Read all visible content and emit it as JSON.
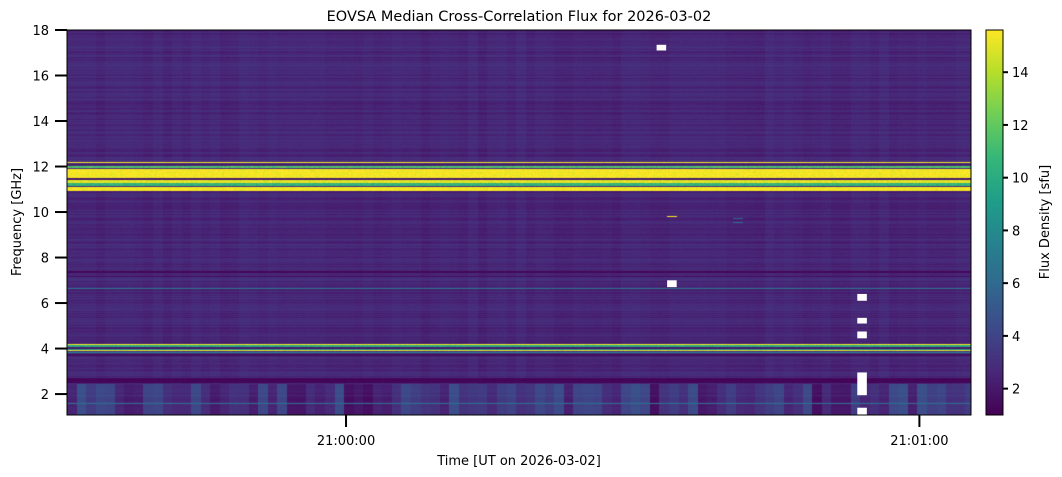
{
  "chart_data": {
    "type": "heatmap",
    "title": "EOVSA Median Cross-Correlation Flux for 2026-03-02",
    "xlabel": "Time [UT on 2026-03-02]",
    "ylabel": "Frequency [GHz]",
    "x_unit": "seconds relative to 21:00:00 UT",
    "xlim": [
      -29.2,
      65.4
    ],
    "xticks": [
      {
        "value": 0,
        "label": "21:00:00"
      },
      {
        "value": 60,
        "label": "21:01:00"
      }
    ],
    "time_step_s": 1.0,
    "ylim": [
      1.08,
      18
    ],
    "yticks": [
      2,
      4,
      6,
      8,
      10,
      12,
      14,
      16,
      18
    ],
    "colorbar": {
      "label": "Flux Density [sfu]",
      "colormap": "viridis",
      "clim": [
        1.0,
        15.6
      ],
      "ticks": [
        2,
        4,
        6,
        8,
        10,
        12,
        14
      ]
    },
    "background_flux_sfu": 2.6,
    "bands": [
      {
        "f": [
          12.16,
          12.22
        ],
        "flux": 15.5
      },
      {
        "f": [
          12.05,
          12.12
        ],
        "flux": 2.0
      },
      {
        "f": [
          11.92,
          12.02
        ],
        "flux": 11.5
      },
      {
        "f": [
          11.5,
          11.9
        ],
        "flux": 15.5
      },
      {
        "f": [
          11.42,
          11.48
        ],
        "flux": 2.0
      },
      {
        "f": [
          11.28,
          11.4
        ],
        "flux": 15.0
      },
      {
        "f": [
          11.15,
          11.26
        ],
        "flux": 10.5
      },
      {
        "f": [
          10.93,
          11.12
        ],
        "flux": 15.5
      },
      {
        "f": [
          7.33,
          7.4
        ],
        "flux": 1.3
      },
      {
        "f": [
          7.15,
          7.2
        ],
        "flux": 1.6
      },
      {
        "f": [
          6.62,
          6.68
        ],
        "flux": 6.5
      },
      {
        "f": [
          4.15,
          4.22
        ],
        "flux": 15.5
      },
      {
        "f": [
          4.08,
          4.14
        ],
        "flux": 10.0
      },
      {
        "f": [
          4.0,
          4.06
        ],
        "flux": 2.0
      },
      {
        "f": [
          3.94,
          3.99
        ],
        "flux": 8.0
      },
      {
        "f": [
          3.88,
          3.93
        ],
        "flux": 15.0
      },
      {
        "f": [
          3.82,
          3.87
        ],
        "flux": 7.5
      },
      {
        "f": [
          3.66,
          3.74
        ],
        "flux": 1.5
      },
      {
        "f": [
          2.5,
          2.72
        ],
        "flux": 1.2
      },
      {
        "f": [
          1.58,
          1.62
        ],
        "flux": 6.0
      },
      {
        "f": [
          1.28,
          1.32
        ],
        "flux": 5.0
      }
    ],
    "low_band_f_max": 2.45,
    "transient_features": [
      {
        "t": [
          33.6,
          34.6
        ],
        "f": [
          9.77,
          9.83
        ],
        "flux": 15.5
      },
      {
        "t": [
          40.5,
          41.5
        ],
        "f": [
          9.5,
          9.54
        ],
        "flux": 6.0
      },
      {
        "t": [
          40.5,
          41.5
        ],
        "f": [
          9.68,
          9.72
        ],
        "flux": 5.5
      }
    ],
    "masked_cells": [
      {
        "t": [
          32.5,
          33.5
        ],
        "f": [
          17.1,
          17.35
        ]
      },
      {
        "t": [
          33.6,
          34.6
        ],
        "f": [
          6.7,
          7.0
        ]
      },
      {
        "t": [
          53.5,
          54.5
        ],
        "f": [
          6.1,
          6.4
        ]
      },
      {
        "t": [
          53.5,
          54.5
        ],
        "f": [
          5.1,
          5.35
        ]
      },
      {
        "t": [
          53.5,
          54.5
        ],
        "f": [
          4.45,
          4.75
        ]
      },
      {
        "t": [
          53.5,
          54.5
        ],
        "f": [
          1.95,
          2.95
        ]
      },
      {
        "t": [
          53.5,
          54.5
        ],
        "f": [
          1.1,
          1.4
        ]
      }
    ]
  }
}
